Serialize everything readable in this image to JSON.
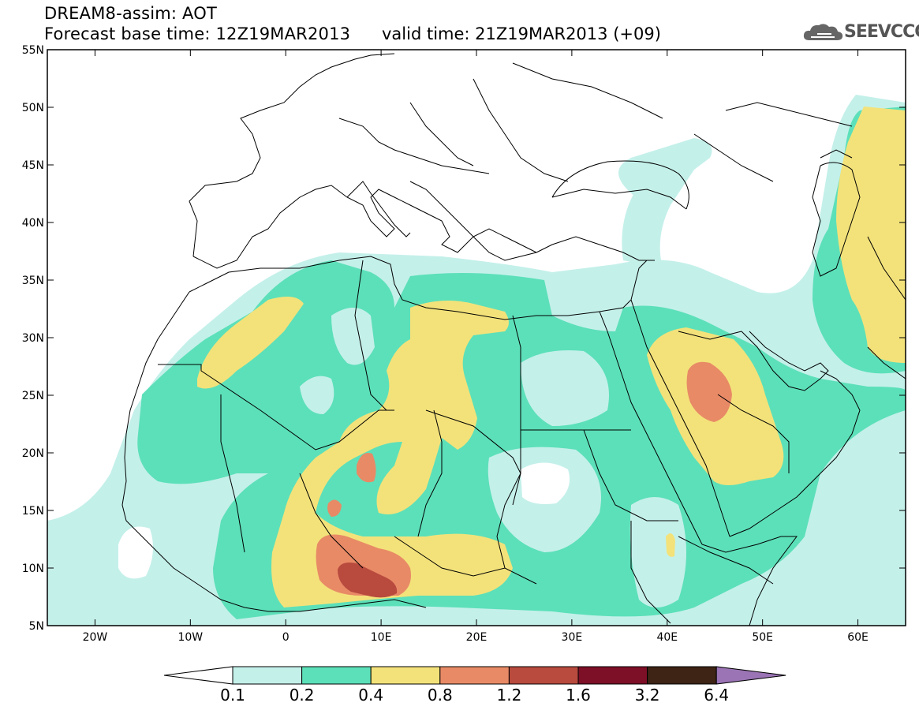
{
  "header": {
    "line1": "DREAM8-assim: AOT",
    "line2_base": "Forecast base time: 12Z19MAR2013",
    "line2_valid": "valid time: 21Z19MAR2013 (+09)"
  },
  "logo": {
    "text": "SEEVCCC",
    "icon": "cloud-logo-icon"
  },
  "map": {
    "lon_range": [
      -25,
      65
    ],
    "lat_range": [
      5,
      55
    ],
    "lat_ticks": [
      "55N",
      "50N",
      "45N",
      "40N",
      "35N",
      "30N",
      "25N",
      "20N",
      "15N",
      "10N",
      "5N"
    ],
    "lon_ticks": [
      "20W",
      "10W",
      "0",
      "10E",
      "20E",
      "30E",
      "40E",
      "50E",
      "60E"
    ]
  },
  "legend": {
    "levels": [
      "0.1",
      "0.2",
      "0.4",
      "0.8",
      "1.2",
      "1.6",
      "3.2",
      "6.4"
    ],
    "colors": [
      "#c4f0ea",
      "#5ce0b9",
      "#f3e27a",
      "#e88a66",
      "#b84a3e",
      "#7d0f27",
      "#3d2414",
      "#9a74b4"
    ]
  },
  "colors": {
    "c0": "#c4f0ea",
    "c1": "#5ce0b9",
    "c2": "#f3e27a",
    "c3": "#e88a66",
    "c4": "#b84a3e"
  }
}
